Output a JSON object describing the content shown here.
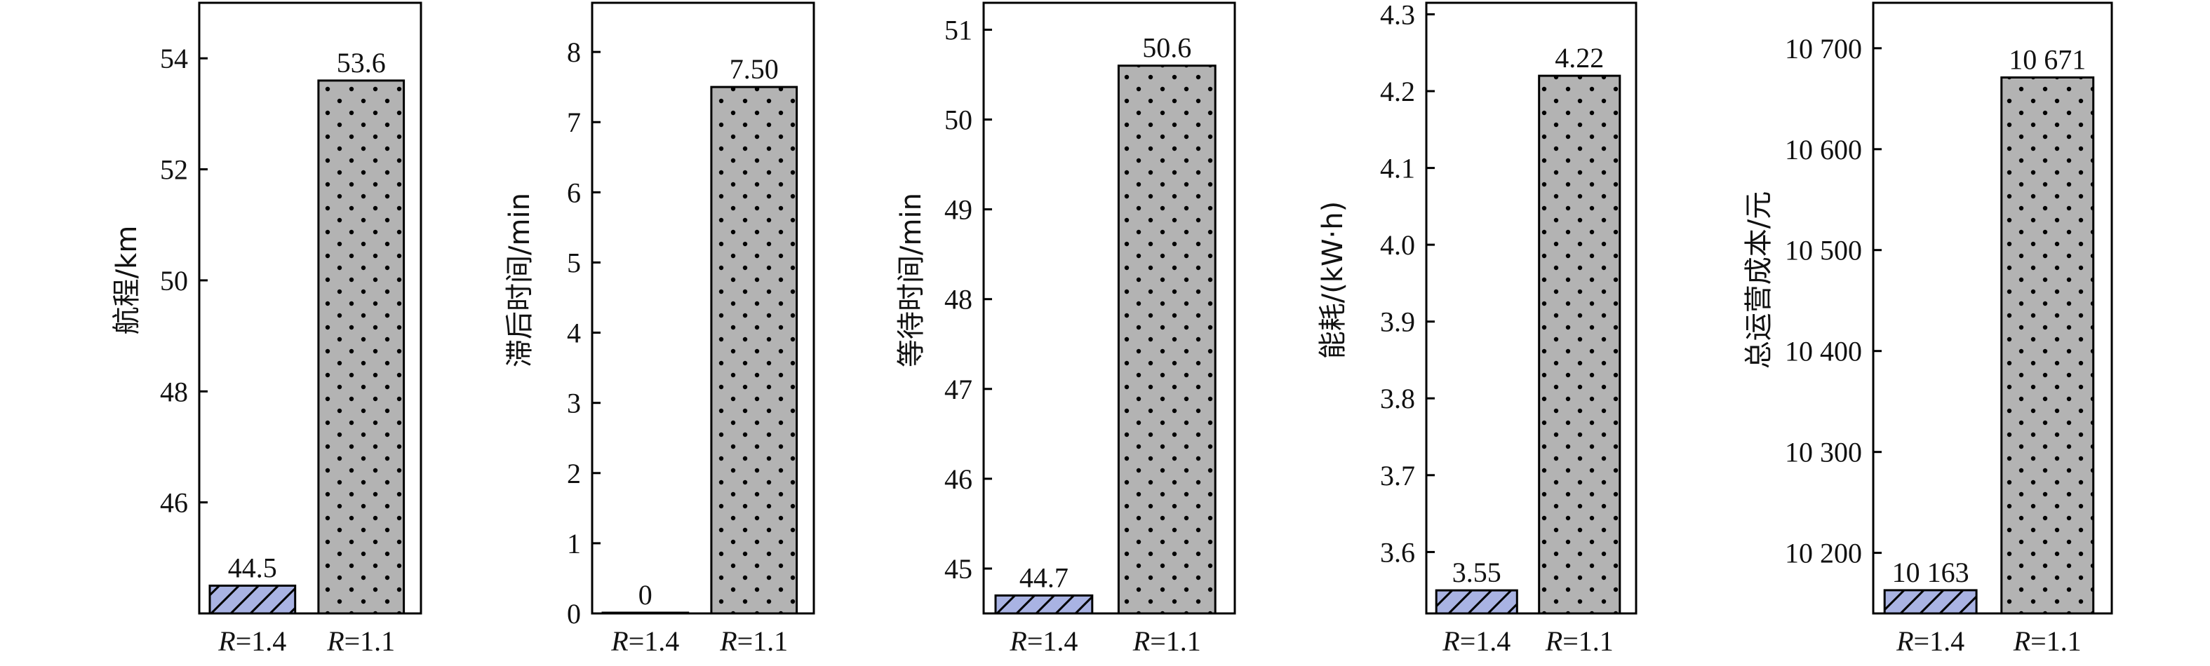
{
  "chart_data": [
    {
      "type": "bar",
      "ylabel": "航程/km",
      "ylim": [
        44.0,
        55.0
      ],
      "yticks": [
        46,
        48,
        50,
        52,
        54
      ],
      "ytick_labels": [
        "46",
        "48",
        "50",
        "52",
        "54"
      ],
      "categories": [
        "R=1.4",
        "R=1.1"
      ],
      "values": [
        44.5,
        53.6
      ],
      "value_labels": [
        "44.5",
        "53.6"
      ]
    },
    {
      "type": "bar",
      "ylabel": "滞后时间/min",
      "ylim": [
        0,
        8.7
      ],
      "yticks": [
        0,
        1,
        2,
        3,
        4,
        5,
        6,
        7,
        8
      ],
      "ytick_labels": [
        "0",
        "1",
        "2",
        "3",
        "4",
        "5",
        "6",
        "7",
        "8"
      ],
      "categories": [
        "R=1.4",
        "R=1.1"
      ],
      "values": [
        0,
        7.5
      ],
      "value_labels": [
        "0",
        "7.50"
      ]
    },
    {
      "type": "bar",
      "ylabel": "等待时间/min",
      "ylim": [
        44.5,
        51.3
      ],
      "yticks": [
        45,
        46,
        47,
        48,
        49,
        50,
        51
      ],
      "ytick_labels": [
        "45",
        "46",
        "47",
        "48",
        "49",
        "50",
        "51"
      ],
      "categories": [
        "R=1.4",
        "R=1.1"
      ],
      "values": [
        44.7,
        50.6
      ],
      "value_labels": [
        "44.7",
        "50.6"
      ]
    },
    {
      "type": "bar",
      "ylabel": "能耗/(kW·h)",
      "ylim": [
        3.52,
        4.315
      ],
      "yticks": [
        3.6,
        3.7,
        3.8,
        3.9,
        4.0,
        4.1,
        4.2,
        4.3
      ],
      "ytick_labels": [
        "3.6",
        "3.7",
        "3.8",
        "3.9",
        "4.0",
        "4.1",
        "4.2",
        "4.3"
      ],
      "categories": [
        "R=1.4",
        "R=1.1"
      ],
      "values": [
        3.55,
        4.22
      ],
      "value_labels": [
        "3.55",
        "4.22"
      ]
    },
    {
      "type": "bar",
      "ylabel": "总运营成本/元",
      "ylim": [
        10140,
        10745
      ],
      "yticks": [
        10200,
        10300,
        10400,
        10500,
        10600,
        10700
      ],
      "ytick_labels": [
        "10 200",
        "10 300",
        "10 400",
        "10 500",
        "10 600",
        "10 700"
      ],
      "categories": [
        "R=1.4",
        "R=1.1"
      ],
      "values": [
        10163,
        10671
      ],
      "value_labels": [
        "10 163",
        "10 671"
      ]
    }
  ],
  "style": {
    "bar_colors": [
      "#a9b3e3",
      "#b3b3b3"
    ],
    "bar_patterns": [
      "hatch",
      "dots"
    ]
  }
}
